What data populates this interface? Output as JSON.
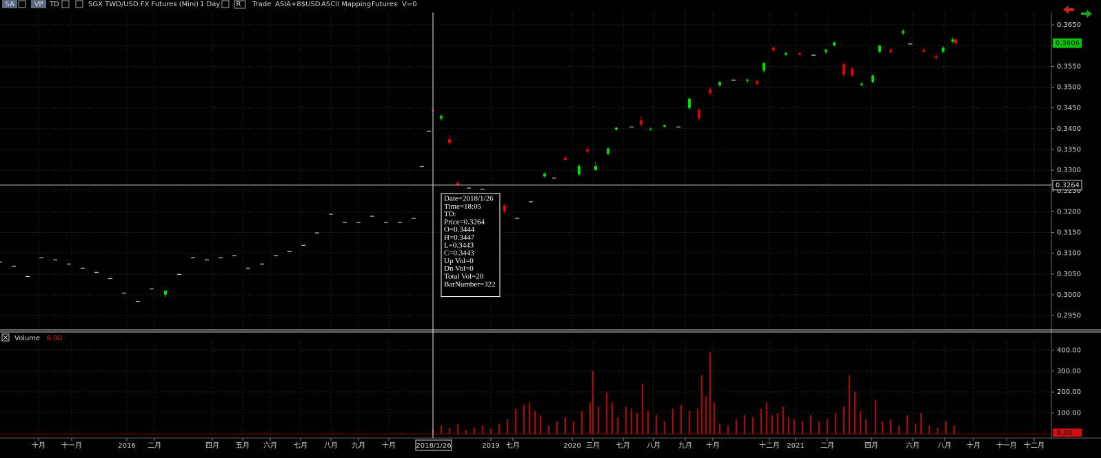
{
  "toolbar": {
    "items": [
      "SA",
      "VP",
      "TD",
      "SGX TWD/USD FX Futures (Mini)",
      "1 Day",
      "R",
      "Trade",
      "ASIA+8$USD",
      "ASCII Mapping",
      "Futures",
      "V=0"
    ]
  },
  "chart_data": [
    {
      "type": "candlestick",
      "up_color": "#00e000",
      "down_color": "#e00000",
      "flat_color": "#c8c8c8",
      "ylim": [
        0.2917,
        0.368
      ],
      "yticks": [
        {
          "value": 0.295,
          "label": "0.2950"
        },
        {
          "value": 0.3,
          "label": "0.3000"
        },
        {
          "value": 0.305,
          "label": "0.3050"
        },
        {
          "value": 0.31,
          "label": "0.3100"
        },
        {
          "value": 0.315,
          "label": "0.3150"
        },
        {
          "value": 0.32,
          "label": "0.3200"
        },
        {
          "value": 0.325,
          "label": "0.3250"
        },
        {
          "value": 0.33,
          "label": "0.3300"
        },
        {
          "value": 0.335,
          "label": "0.3350"
        },
        {
          "value": 0.34,
          "label": "0.3400"
        },
        {
          "value": 0.345,
          "label": "0.3450"
        },
        {
          "value": 0.35,
          "label": "0.3500"
        },
        {
          "value": 0.355,
          "label": "0.3550"
        },
        {
          "value": 0.36,
          "label": "0.3600"
        },
        {
          "value": 0.365,
          "label": "0.3650"
        }
      ],
      "last_price": 0.3606,
      "candles": [
        {
          "x": 8,
          "open": 0.308,
          "high": 0.308,
          "low": 0.308,
          "close": 0.308
        },
        {
          "x": 18,
          "open": 0.307,
          "high": 0.307,
          "low": 0.307,
          "close": 0.307
        },
        {
          "x": 28,
          "open": 0.3045,
          "high": 0.3045,
          "low": 0.3045,
          "close": 0.3045
        },
        {
          "x": 38,
          "open": 0.309,
          "high": 0.309,
          "low": 0.309,
          "close": 0.309
        },
        {
          "x": 48,
          "open": 0.3085,
          "high": 0.3085,
          "low": 0.3085,
          "close": 0.3085
        },
        {
          "x": 58,
          "open": 0.3075,
          "high": 0.3075,
          "low": 0.3075,
          "close": 0.3075
        },
        {
          "x": 68,
          "open": 0.3065,
          "high": 0.3065,
          "low": 0.3065,
          "close": 0.3065
        },
        {
          "x": 78,
          "open": 0.3055,
          "high": 0.3055,
          "low": 0.3055,
          "close": 0.3055
        },
        {
          "x": 88,
          "open": 0.304,
          "high": 0.304,
          "low": 0.304,
          "close": 0.304
        },
        {
          "x": 98,
          "open": 0.3005,
          "high": 0.3005,
          "low": 0.3005,
          "close": 0.3005
        },
        {
          "x": 108,
          "open": 0.2985,
          "high": 0.2985,
          "low": 0.2985,
          "close": 0.2985
        },
        {
          "x": 118,
          "open": 0.3015,
          "high": 0.3015,
          "low": 0.3015,
          "close": 0.3015
        },
        {
          "x": 128,
          "open": 0.3,
          "high": 0.301,
          "low": 0.2995,
          "close": 0.301
        },
        {
          "x": 138,
          "open": 0.305,
          "high": 0.305,
          "low": 0.305,
          "close": 0.305
        },
        {
          "x": 148,
          "open": 0.309,
          "high": 0.309,
          "low": 0.309,
          "close": 0.309
        },
        {
          "x": 158,
          "open": 0.3085,
          "high": 0.3085,
          "low": 0.3085,
          "close": 0.3085
        },
        {
          "x": 168,
          "open": 0.309,
          "high": 0.309,
          "low": 0.309,
          "close": 0.309
        },
        {
          "x": 178,
          "open": 0.3095,
          "high": 0.3095,
          "low": 0.3095,
          "close": 0.3095
        },
        {
          "x": 188,
          "open": 0.3065,
          "high": 0.3065,
          "low": 0.3065,
          "close": 0.3065
        },
        {
          "x": 198,
          "open": 0.3075,
          "high": 0.3075,
          "low": 0.3075,
          "close": 0.3075
        },
        {
          "x": 208,
          "open": 0.3095,
          "high": 0.3095,
          "low": 0.3095,
          "close": 0.3095
        },
        {
          "x": 218,
          "open": 0.3105,
          "high": 0.3105,
          "low": 0.3105,
          "close": 0.3105
        },
        {
          "x": 228,
          "open": 0.312,
          "high": 0.312,
          "low": 0.312,
          "close": 0.312
        },
        {
          "x": 238,
          "open": 0.315,
          "high": 0.315,
          "low": 0.315,
          "close": 0.315
        },
        {
          "x": 248,
          "open": 0.3195,
          "high": 0.3195,
          "low": 0.3195,
          "close": 0.3195
        },
        {
          "x": 258,
          "open": 0.3175,
          "high": 0.3175,
          "low": 0.3175,
          "close": 0.3175
        },
        {
          "x": 268,
          "open": 0.3175,
          "high": 0.3175,
          "low": 0.3175,
          "close": 0.3175
        },
        {
          "x": 278,
          "open": 0.319,
          "high": 0.319,
          "low": 0.319,
          "close": 0.319
        },
        {
          "x": 288,
          "open": 0.3175,
          "high": 0.3175,
          "low": 0.3175,
          "close": 0.3175
        },
        {
          "x": 298,
          "open": 0.3175,
          "high": 0.3175,
          "low": 0.3175,
          "close": 0.3175
        },
        {
          "x": 308,
          "open": 0.3185,
          "high": 0.3185,
          "low": 0.3185,
          "close": 0.3185
        },
        {
          "x": 314,
          "open": 0.331,
          "high": 0.331,
          "low": 0.331,
          "close": 0.331
        },
        {
          "x": 319,
          "open": 0.3395,
          "high": 0.3395,
          "low": 0.3395,
          "close": 0.3395
        },
        {
          "x": 322,
          "open": 0.3444,
          "high": 0.3447,
          "low": 0.3443,
          "close": 0.3443
        },
        {
          "x": 328,
          "open": 0.3425,
          "high": 0.3435,
          "low": 0.342,
          "close": 0.343
        },
        {
          "x": 334,
          "open": 0.3375,
          "high": 0.3385,
          "low": 0.336,
          "close": 0.3365
        },
        {
          "x": 340,
          "open": 0.327,
          "high": 0.3275,
          "low": 0.3262,
          "close": 0.3265
        },
        {
          "x": 348,
          "open": 0.3258,
          "high": 0.3258,
          "low": 0.3258,
          "close": 0.3258
        },
        {
          "x": 358,
          "open": 0.3255,
          "high": 0.3255,
          "low": 0.3255,
          "close": 0.3255
        },
        {
          "x": 368,
          "open": 0.3245,
          "high": 0.3245,
          "low": 0.3245,
          "close": 0.3245
        },
        {
          "x": 374,
          "open": 0.3215,
          "high": 0.322,
          "low": 0.3195,
          "close": 0.32
        },
        {
          "x": 383,
          "open": 0.3185,
          "high": 0.3185,
          "low": 0.3185,
          "close": 0.3185
        },
        {
          "x": 393,
          "open": 0.3225,
          "high": 0.3225,
          "low": 0.3225,
          "close": 0.3225
        },
        {
          "x": 403,
          "open": 0.3285,
          "high": 0.3295,
          "low": 0.3282,
          "close": 0.3292
        },
        {
          "x": 410,
          "open": 0.3282,
          "high": 0.3282,
          "low": 0.3282,
          "close": 0.3282
        },
        {
          "x": 418,
          "open": 0.333,
          "high": 0.3335,
          "low": 0.3322,
          "close": 0.3325
        },
        {
          "x": 428,
          "open": 0.329,
          "high": 0.3315,
          "low": 0.3285,
          "close": 0.331
        },
        {
          "x": 434,
          "open": 0.335,
          "high": 0.3358,
          "low": 0.334,
          "close": 0.3345
        },
        {
          "x": 440,
          "open": 0.33,
          "high": 0.332,
          "low": 0.33,
          "close": 0.331
        },
        {
          "x": 449,
          "open": 0.334,
          "high": 0.3355,
          "low": 0.3335,
          "close": 0.3352
        },
        {
          "x": 455,
          "open": 0.3398,
          "high": 0.3405,
          "low": 0.3395,
          "close": 0.3402
        },
        {
          "x": 466,
          "open": 0.3405,
          "high": 0.3405,
          "low": 0.3405,
          "close": 0.3405
        },
        {
          "x": 473,
          "open": 0.342,
          "high": 0.343,
          "low": 0.3405,
          "close": 0.341
        },
        {
          "x": 480,
          "open": 0.3398,
          "high": 0.3403,
          "low": 0.3395,
          "close": 0.34
        },
        {
          "x": 490,
          "open": 0.3405,
          "high": 0.341,
          "low": 0.3402,
          "close": 0.3408
        },
        {
          "x": 500,
          "open": 0.3405,
          "high": 0.3405,
          "low": 0.3405,
          "close": 0.3405
        },
        {
          "x": 508,
          "open": 0.345,
          "high": 0.3475,
          "low": 0.3445,
          "close": 0.3472
        },
        {
          "x": 515,
          "open": 0.3445,
          "high": 0.345,
          "low": 0.342,
          "close": 0.3425
        },
        {
          "x": 523,
          "open": 0.3495,
          "high": 0.35,
          "low": 0.348,
          "close": 0.3485
        },
        {
          "x": 530,
          "open": 0.3505,
          "high": 0.3515,
          "low": 0.35,
          "close": 0.3512
        },
        {
          "x": 540,
          "open": 0.3518,
          "high": 0.3518,
          "low": 0.3518,
          "close": 0.3518
        },
        {
          "x": 550,
          "open": 0.3515,
          "high": 0.352,
          "low": 0.351,
          "close": 0.3518
        },
        {
          "x": 557,
          "open": 0.3515,
          "high": 0.3518,
          "low": 0.3505,
          "close": 0.3508
        },
        {
          "x": 562,
          "open": 0.354,
          "high": 0.356,
          "low": 0.3535,
          "close": 0.3558
        },
        {
          "x": 569,
          "open": 0.3595,
          "high": 0.3598,
          "low": 0.3585,
          "close": 0.3588
        },
        {
          "x": 578,
          "open": 0.3578,
          "high": 0.3585,
          "low": 0.3575,
          "close": 0.3582
        },
        {
          "x": 588,
          "open": 0.3582,
          "high": 0.3585,
          "low": 0.3575,
          "close": 0.3578
        },
        {
          "x": 598,
          "open": 0.3578,
          "high": 0.3578,
          "low": 0.3578,
          "close": 0.3578
        },
        {
          "x": 607,
          "open": 0.3585,
          "high": 0.3592,
          "low": 0.358,
          "close": 0.359
        },
        {
          "x": 613,
          "open": 0.36,
          "high": 0.361,
          "low": 0.3598,
          "close": 0.3608
        },
        {
          "x": 620,
          "open": 0.3555,
          "high": 0.356,
          "low": 0.3525,
          "close": 0.353
        },
        {
          "x": 626,
          "open": 0.3545,
          "high": 0.3548,
          "low": 0.3525,
          "close": 0.3528
        },
        {
          "x": 633,
          "open": 0.3505,
          "high": 0.3512,
          "low": 0.3502,
          "close": 0.3508
        },
        {
          "x": 641,
          "open": 0.3512,
          "high": 0.353,
          "low": 0.351,
          "close": 0.3528
        },
        {
          "x": 646,
          "open": 0.3585,
          "high": 0.3602,
          "low": 0.3582,
          "close": 0.36
        },
        {
          "x": 654,
          "open": 0.359,
          "high": 0.3595,
          "low": 0.358,
          "close": 0.3585
        },
        {
          "x": 663,
          "open": 0.363,
          "high": 0.364,
          "low": 0.3625,
          "close": 0.3635
        },
        {
          "x": 668,
          "open": 0.3605,
          "high": 0.3605,
          "low": 0.3605,
          "close": 0.3605
        },
        {
          "x": 678,
          "open": 0.359,
          "high": 0.3595,
          "low": 0.3583,
          "close": 0.3585
        },
        {
          "x": 687,
          "open": 0.3575,
          "high": 0.358,
          "low": 0.3565,
          "close": 0.357
        },
        {
          "x": 692,
          "open": 0.3585,
          "high": 0.3598,
          "low": 0.3582,
          "close": 0.3595
        },
        {
          "x": 699,
          "open": 0.361,
          "high": 0.362,
          "low": 0.3605,
          "close": 0.3615
        },
        {
          "x": 701,
          "open": 0.3615,
          "high": 0.3618,
          "low": 0.36,
          "close": 0.3606
        }
      ]
    },
    {
      "type": "bar",
      "title": "Volume",
      "color": "#c00000",
      "last_value": 6,
      "last_value_label": "6.00",
      "xlim": [
        8,
        770.5
      ],
      "xticks": [
        {
          "value": 36,
          "label": "十月"
        },
        {
          "value": 60,
          "label": "十一月"
        },
        {
          "value": 100,
          "label": "2016"
        },
        {
          "value": 120,
          "label": "二月"
        },
        {
          "value": 162,
          "label": "四月"
        },
        {
          "value": 184,
          "label": "五月"
        },
        {
          "value": 204,
          "label": "六月"
        },
        {
          "value": 226,
          "label": "七月"
        },
        {
          "value": 248,
          "label": "八月"
        },
        {
          "value": 268,
          "label": "九月"
        },
        {
          "value": 290,
          "label": "十月"
        },
        {
          "value": 364,
          "label": "2019"
        },
        {
          "value": 380,
          "label": "七月"
        },
        {
          "value": 423,
          "label": "2020"
        },
        {
          "value": 438,
          "label": "三月"
        },
        {
          "value": 460,
          "label": "七月"
        },
        {
          "value": 482,
          "label": "八月"
        },
        {
          "value": 505,
          "label": "九月"
        },
        {
          "value": 525,
          "label": "十月"
        },
        {
          "value": 566,
          "label": "十二月"
        },
        {
          "value": 585,
          "label": "2021"
        },
        {
          "value": 608,
          "label": "二月"
        },
        {
          "value": 640,
          "label": "四月"
        },
        {
          "value": 670,
          "label": "六月"
        },
        {
          "value": 693,
          "label": "八月"
        },
        {
          "value": 714,
          "label": "十月"
        },
        {
          "value": 738,
          "label": "十一月"
        },
        {
          "value": 758,
          "label": "十二月"
        }
      ],
      "ylim": [
        0,
        480
      ],
      "yticks": [
        {
          "value": 100,
          "label": "100.00"
        },
        {
          "value": 200,
          "label": "200.00"
        },
        {
          "value": 300,
          "label": "300.00"
        },
        {
          "value": 400,
          "label": "400.00"
        }
      ],
      "x": [
        100,
        200,
        250,
        300,
        322,
        328,
        334,
        340,
        346,
        352,
        358,
        364,
        370,
        376,
        382,
        388,
        392,
        396,
        400,
        406,
        412,
        418,
        424,
        430,
        436,
        438,
        442,
        448,
        452,
        456,
        462,
        466,
        470,
        474,
        478,
        484,
        490,
        496,
        502,
        508,
        514,
        517,
        520,
        523,
        526,
        530,
        536,
        542,
        548,
        554,
        560,
        564,
        568,
        572,
        576,
        580,
        584,
        590,
        596,
        602,
        608,
        614,
        620,
        624,
        628,
        632,
        636,
        643,
        648,
        654,
        660,
        666,
        672,
        676,
        682,
        688,
        694,
        700
      ],
      "values": [
        3,
        4,
        3,
        5,
        20,
        40,
        30,
        45,
        20,
        30,
        40,
        25,
        50,
        70,
        120,
        140,
        150,
        110,
        90,
        40,
        60,
        80,
        60,
        110,
        150,
        300,
        130,
        200,
        150,
        80,
        130,
        120,
        100,
        240,
        110,
        90,
        60,
        120,
        140,
        110,
        120,
        280,
        180,
        390,
        150,
        50,
        40,
        70,
        90,
        80,
        120,
        150,
        90,
        100,
        130,
        80,
        70,
        60,
        90,
        60,
        70,
        100,
        130,
        280,
        200,
        110,
        70,
        160,
        60,
        70,
        40,
        90,
        50,
        100,
        40,
        30,
        60,
        40
      ]
    }
  ],
  "crosshair": {
    "x": 322,
    "price": 0.3264,
    "date_label": "2018/1/26"
  },
  "tooltip": [
    "Date=2018/1/26",
    "Time=18:05",
    "TD:",
    "Price=0.3264",
    "O=0.3444",
    "H=0.3447",
    "L=0.3443",
    "C=0.3443",
    "Up Vol=0",
    "Dn Vol=0",
    "Total Vol=20",
    "BarNumber=322"
  ]
}
